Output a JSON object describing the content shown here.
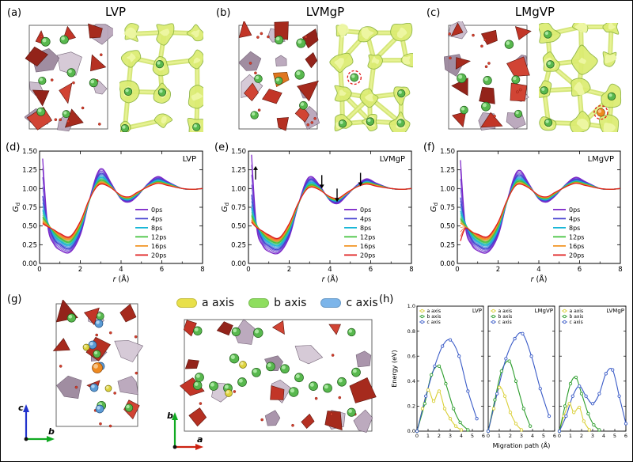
{
  "figure": {
    "bg": "#ffffff"
  },
  "panels": {
    "a": {
      "tag": "(a)",
      "title": "LVP"
    },
    "b": {
      "tag": "(b)",
      "title": "LVMgP"
    },
    "c": {
      "tag": "(c)",
      "title": "LMgVP"
    },
    "d": {
      "tag": "(d)"
    },
    "e": {
      "tag": "(e)"
    },
    "f": {
      "tag": "(f)"
    },
    "g": {
      "tag": "(g)"
    },
    "h": {
      "tag": "(h)"
    }
  },
  "annotation_colors": {
    "dashed_circle": "#e01212"
  },
  "axis_legend": {
    "items": [
      {
        "label": "a axis",
        "color": "#e8e04a"
      },
      {
        "label": "b axis",
        "color": "#8ede5e"
      },
      {
        "label": "c axis",
        "color": "#7cb5ea"
      }
    ]
  },
  "g_axes": {
    "left": {
      "up": "c",
      "right": "b",
      "up_color": "#2233cc",
      "right_color": "#11aa22"
    },
    "right": {
      "up": "b",
      "right": "a",
      "up_color": "#11aa22",
      "right_color": "#cc2211"
    }
  },
  "chart_data": [
    {
      "type": "line",
      "panel": "d",
      "title": "LVP",
      "xlabel": "r (Å)",
      "ylabel": "G_d",
      "xlim": [
        0,
        8
      ],
      "ylim": [
        0,
        1.5
      ],
      "xticks": [
        0,
        2,
        4,
        6,
        8
      ],
      "yticks": [
        0.0,
        0.25,
        0.5,
        0.75,
        1.0,
        1.25,
        1.5
      ],
      "legend_pos": "right-bottom",
      "x": [
        0.15,
        0.4,
        0.7,
        1.0,
        1.5,
        2.0,
        2.4,
        2.8,
        3.1,
        3.5,
        4.0,
        4.4,
        4.8,
        5.3,
        5.8,
        6.3,
        7.0,
        7.5,
        8.0
      ],
      "series": [
        {
          "name": "0ps",
          "color": "#7d26c9",
          "values": [
            1.4,
            0.5,
            0.26,
            0.18,
            0.15,
            0.38,
            0.8,
            1.18,
            1.26,
            1.08,
            0.86,
            0.82,
            0.9,
            1.06,
            1.16,
            1.09,
            1.0,
            0.99,
            1.0
          ]
        },
        {
          "name": "4ps",
          "color": "#4440d0",
          "values": [
            0.9,
            0.55,
            0.33,
            0.25,
            0.2,
            0.42,
            0.8,
            1.13,
            1.2,
            1.06,
            0.87,
            0.84,
            0.91,
            1.05,
            1.13,
            1.08,
            1.0,
            0.99,
            1.0
          ]
        },
        {
          "name": "8ps",
          "color": "#16b6d6",
          "values": [
            0.72,
            0.55,
            0.38,
            0.3,
            0.25,
            0.46,
            0.8,
            1.09,
            1.15,
            1.04,
            0.88,
            0.85,
            0.92,
            1.04,
            1.11,
            1.07,
            1.0,
            0.99,
            1.0
          ]
        },
        {
          "name": "12ps",
          "color": "#43c33c",
          "values": [
            0.62,
            0.53,
            0.42,
            0.34,
            0.29,
            0.5,
            0.81,
            1.06,
            1.11,
            1.03,
            0.89,
            0.87,
            0.93,
            1.03,
            1.09,
            1.06,
            1.0,
            0.99,
            1.0
          ]
        },
        {
          "name": "16ps",
          "color": "#f29422",
          "values": [
            0.56,
            0.51,
            0.44,
            0.37,
            0.33,
            0.53,
            0.82,
            1.04,
            1.08,
            1.02,
            0.9,
            0.88,
            0.94,
            1.03,
            1.08,
            1.05,
            1.0,
            0.99,
            1.0
          ]
        },
        {
          "name": "20ps",
          "color": "#df1e1e",
          "values": [
            0.53,
            0.49,
            0.45,
            0.4,
            0.36,
            0.56,
            0.83,
            1.02,
            1.06,
            1.01,
            0.91,
            0.89,
            0.95,
            1.02,
            1.07,
            1.04,
            1.0,
            0.99,
            1.0
          ]
        }
      ]
    },
    {
      "type": "line",
      "panel": "e",
      "title": "LVMgP",
      "xlabel": "r (Å)",
      "ylabel": "G_d",
      "xlim": [
        0,
        8
      ],
      "ylim": [
        0,
        1.5
      ],
      "xticks": [
        0,
        2,
        4,
        6,
        8
      ],
      "yticks": [
        0.0,
        0.25,
        0.5,
        0.75,
        1.0,
        1.25,
        1.5
      ],
      "legend_pos": "right-bottom",
      "x": [
        0.15,
        0.4,
        0.7,
        1.0,
        1.5,
        2.0,
        2.4,
        2.8,
        3.1,
        3.5,
        4.0,
        4.4,
        4.8,
        5.3,
        5.8,
        6.3,
        7.0,
        7.5,
        8.0
      ],
      "annotations": [
        {
          "x": 0.35,
          "y": 1.3,
          "dir": "up"
        },
        {
          "x": 3.6,
          "y": 1.0,
          "dir": "down"
        },
        {
          "x": 4.35,
          "y": 0.82,
          "dir": "down"
        },
        {
          "x": 5.5,
          "y": 1.03,
          "dir": "down"
        }
      ],
      "series": [
        {
          "name": "0ps",
          "color": "#7d26c9",
          "values": [
            1.45,
            0.48,
            0.24,
            0.16,
            0.14,
            0.35,
            0.74,
            1.08,
            1.16,
            1.04,
            0.84,
            0.8,
            0.9,
            1.04,
            1.13,
            1.07,
            1.0,
            0.99,
            1.0
          ]
        },
        {
          "name": "4ps",
          "color": "#4440d0",
          "values": [
            0.92,
            0.52,
            0.31,
            0.23,
            0.19,
            0.39,
            0.74,
            1.04,
            1.12,
            1.02,
            0.85,
            0.82,
            0.91,
            1.03,
            1.11,
            1.06,
            1.0,
            0.99,
            1.0
          ]
        },
        {
          "name": "8ps",
          "color": "#16b6d6",
          "values": [
            0.74,
            0.52,
            0.36,
            0.28,
            0.24,
            0.43,
            0.75,
            1.01,
            1.08,
            1.01,
            0.86,
            0.84,
            0.92,
            1.03,
            1.09,
            1.05,
            1.0,
            0.99,
            1.0
          ]
        },
        {
          "name": "12ps",
          "color": "#43c33c",
          "values": [
            0.64,
            0.51,
            0.4,
            0.32,
            0.28,
            0.47,
            0.76,
            0.99,
            1.05,
            1.0,
            0.87,
            0.85,
            0.93,
            1.02,
            1.08,
            1.05,
            1.0,
            0.99,
            1.0
          ]
        },
        {
          "name": "16ps",
          "color": "#f29422",
          "values": [
            0.58,
            0.49,
            0.42,
            0.35,
            0.31,
            0.5,
            0.77,
            0.98,
            1.03,
            0.99,
            0.88,
            0.86,
            0.93,
            1.02,
            1.07,
            1.04,
            1.0,
            0.99,
            1.0
          ]
        },
        {
          "name": "20ps",
          "color": "#df1e1e",
          "values": [
            0.55,
            0.48,
            0.43,
            0.38,
            0.34,
            0.53,
            0.78,
            0.97,
            1.02,
            0.98,
            0.89,
            0.87,
            0.94,
            1.02,
            1.06,
            1.03,
            1.0,
            0.99,
            1.0
          ]
        }
      ]
    },
    {
      "type": "line",
      "panel": "f",
      "title": "LMgVP",
      "xlabel": "r (Å)",
      "ylabel": "G_d",
      "xlim": [
        0,
        8
      ],
      "ylim": [
        0,
        1.5
      ],
      "xticks": [
        0,
        2,
        4,
        6,
        8
      ],
      "yticks": [
        0.0,
        0.25,
        0.5,
        0.75,
        1.0,
        1.25,
        1.5
      ],
      "legend_pos": "right-bottom",
      "x": [
        0.15,
        0.4,
        0.7,
        1.0,
        1.5,
        2.0,
        2.4,
        2.8,
        3.1,
        3.5,
        4.0,
        4.4,
        4.8,
        5.3,
        5.8,
        6.3,
        7.0,
        7.5,
        8.0
      ],
      "series": [
        {
          "name": "0ps",
          "color": "#7d26c9",
          "values": [
            1.38,
            0.48,
            0.25,
            0.17,
            0.15,
            0.37,
            0.79,
            1.16,
            1.24,
            1.07,
            0.86,
            0.82,
            0.9,
            1.05,
            1.15,
            1.09,
            1.0,
            0.99,
            1.0
          ]
        },
        {
          "name": "4ps",
          "color": "#4440d0",
          "values": [
            0.88,
            0.53,
            0.32,
            0.24,
            0.2,
            0.41,
            0.79,
            1.11,
            1.18,
            1.05,
            0.87,
            0.84,
            0.91,
            1.04,
            1.12,
            1.08,
            1.0,
            0.99,
            1.0
          ]
        },
        {
          "name": "8ps",
          "color": "#16b6d6",
          "values": [
            0.7,
            0.53,
            0.37,
            0.29,
            0.25,
            0.45,
            0.79,
            1.08,
            1.13,
            1.04,
            0.88,
            0.85,
            0.92,
            1.04,
            1.1,
            1.07,
            1.0,
            0.99,
            1.0
          ]
        },
        {
          "name": "12ps",
          "color": "#43c33c",
          "values": [
            0.6,
            0.51,
            0.41,
            0.33,
            0.29,
            0.49,
            0.8,
            1.05,
            1.1,
            1.03,
            0.89,
            0.87,
            0.93,
            1.03,
            1.09,
            1.06,
            1.0,
            0.99,
            1.0
          ]
        },
        {
          "name": "16ps",
          "color": "#f29422",
          "values": [
            0.54,
            0.49,
            0.43,
            0.36,
            0.33,
            0.52,
            0.81,
            1.03,
            1.07,
            1.02,
            0.9,
            0.88,
            0.94,
            1.02,
            1.08,
            1.05,
            1.0,
            0.99,
            1.0
          ]
        },
        {
          "name": "20ps",
          "color": "#df1e1e",
          "values": [
            0.3,
            0.47,
            0.42,
            0.39,
            0.36,
            0.55,
            0.82,
            1.02,
            1.06,
            1.01,
            0.91,
            0.89,
            0.95,
            1.02,
            1.07,
            1.04,
            1.0,
            0.99,
            1.0
          ]
        }
      ]
    },
    {
      "type": "line",
      "panel": "h1",
      "title": "LVP",
      "xlabel": "Migration path (Å)",
      "ylabel": "Energy (eV)",
      "xlim": [
        0,
        6
      ],
      "ylim": [
        0,
        1.0
      ],
      "xticks": [
        0,
        1,
        2,
        3,
        4,
        5,
        6
      ],
      "yticks": [
        0.0,
        0.2,
        0.4,
        0.6,
        0.8,
        1.0
      ],
      "series": [
        {
          "name": "a axis",
          "color": "#d9cf35",
          "x": [
            0,
            0.5,
            1.0,
            1.5,
            2.0,
            2.5,
            3.0,
            3.5,
            4.0
          ],
          "values": [
            0,
            0.18,
            0.33,
            0.24,
            0.32,
            0.18,
            0.1,
            0.04,
            0.01
          ]
        },
        {
          "name": "b axis",
          "color": "#2e9e2e",
          "x": [
            0,
            0.7,
            1.3,
            2.0,
            2.6,
            3.3,
            3.9,
            4.6
          ],
          "values": [
            0,
            0.22,
            0.45,
            0.52,
            0.38,
            0.18,
            0.07,
            0.01
          ]
        },
        {
          "name": "c axis",
          "color": "#3a5bc7",
          "x": [
            0,
            0.8,
            1.6,
            2.3,
            3.0,
            3.8,
            4.6,
            5.4
          ],
          "values": [
            0,
            0.28,
            0.52,
            0.68,
            0.73,
            0.6,
            0.32,
            0.1
          ]
        }
      ]
    },
    {
      "type": "line",
      "panel": "h2",
      "title": "LMgVP",
      "xlabel": "Migration path (Å)",
      "ylabel": "Energy (eV)",
      "xlim": [
        0,
        6
      ],
      "ylim": [
        0,
        1.0
      ],
      "xticks": [
        0,
        1,
        2,
        3,
        4,
        5,
        6
      ],
      "yticks": [
        0.0,
        0.2,
        0.4,
        0.6,
        0.8,
        1.0
      ],
      "series": [
        {
          "name": "a axis",
          "color": "#d9cf35",
          "x": [
            0,
            0.5,
            1.0,
            1.5,
            2.0,
            2.5,
            3.0
          ],
          "values": [
            0,
            0.18,
            0.35,
            0.28,
            0.15,
            0.06,
            0.01
          ]
        },
        {
          "name": "b axis",
          "color": "#2e9e2e",
          "x": [
            0,
            0.6,
            1.2,
            1.9,
            2.5,
            3.2,
            3.8
          ],
          "values": [
            0,
            0.25,
            0.48,
            0.56,
            0.4,
            0.18,
            0.04
          ]
        },
        {
          "name": "c axis",
          "color": "#3a5bc7",
          "x": [
            0,
            0.8,
            1.6,
            2.4,
            3.1,
            3.9,
            4.7,
            5.5
          ],
          "values": [
            0,
            0.3,
            0.58,
            0.74,
            0.78,
            0.6,
            0.34,
            0.12
          ]
        }
      ]
    },
    {
      "type": "line",
      "panel": "h3",
      "title": "LVMgP",
      "xlabel": "Migration path (Å)",
      "ylabel": "Energy (eV)",
      "xlim": [
        0,
        6
      ],
      "ylim": [
        0,
        1.0
      ],
      "xticks": [
        0,
        1,
        2,
        3,
        4,
        5,
        6
      ],
      "yticks": [
        0.0,
        0.2,
        0.4,
        0.6,
        0.8,
        1.0
      ],
      "series": [
        {
          "name": "a axis",
          "color": "#d9cf35",
          "x": [
            0,
            0.4,
            0.9,
            1.3,
            1.8,
            2.2,
            2.7
          ],
          "values": [
            0,
            0.12,
            0.22,
            0.15,
            0.19,
            0.08,
            0.01
          ]
        },
        {
          "name": "b axis",
          "color": "#2e9e2e",
          "x": [
            0,
            0.5,
            1.0,
            1.5,
            2.0,
            2.6,
            3.1,
            3.6
          ],
          "values": [
            0,
            0.2,
            0.38,
            0.43,
            0.3,
            0.14,
            0.05,
            0.01
          ]
        },
        {
          "name": "c axis",
          "color": "#3a5bc7",
          "x": [
            0,
            0.6,
            1.2,
            1.8,
            2.4,
            3.0,
            3.6,
            4.2,
            4.8,
            5.4,
            6.0
          ],
          "values": [
            0,
            0.12,
            0.28,
            0.36,
            0.28,
            0.22,
            0.3,
            0.46,
            0.49,
            0.28,
            0.06
          ]
        }
      ]
    }
  ]
}
